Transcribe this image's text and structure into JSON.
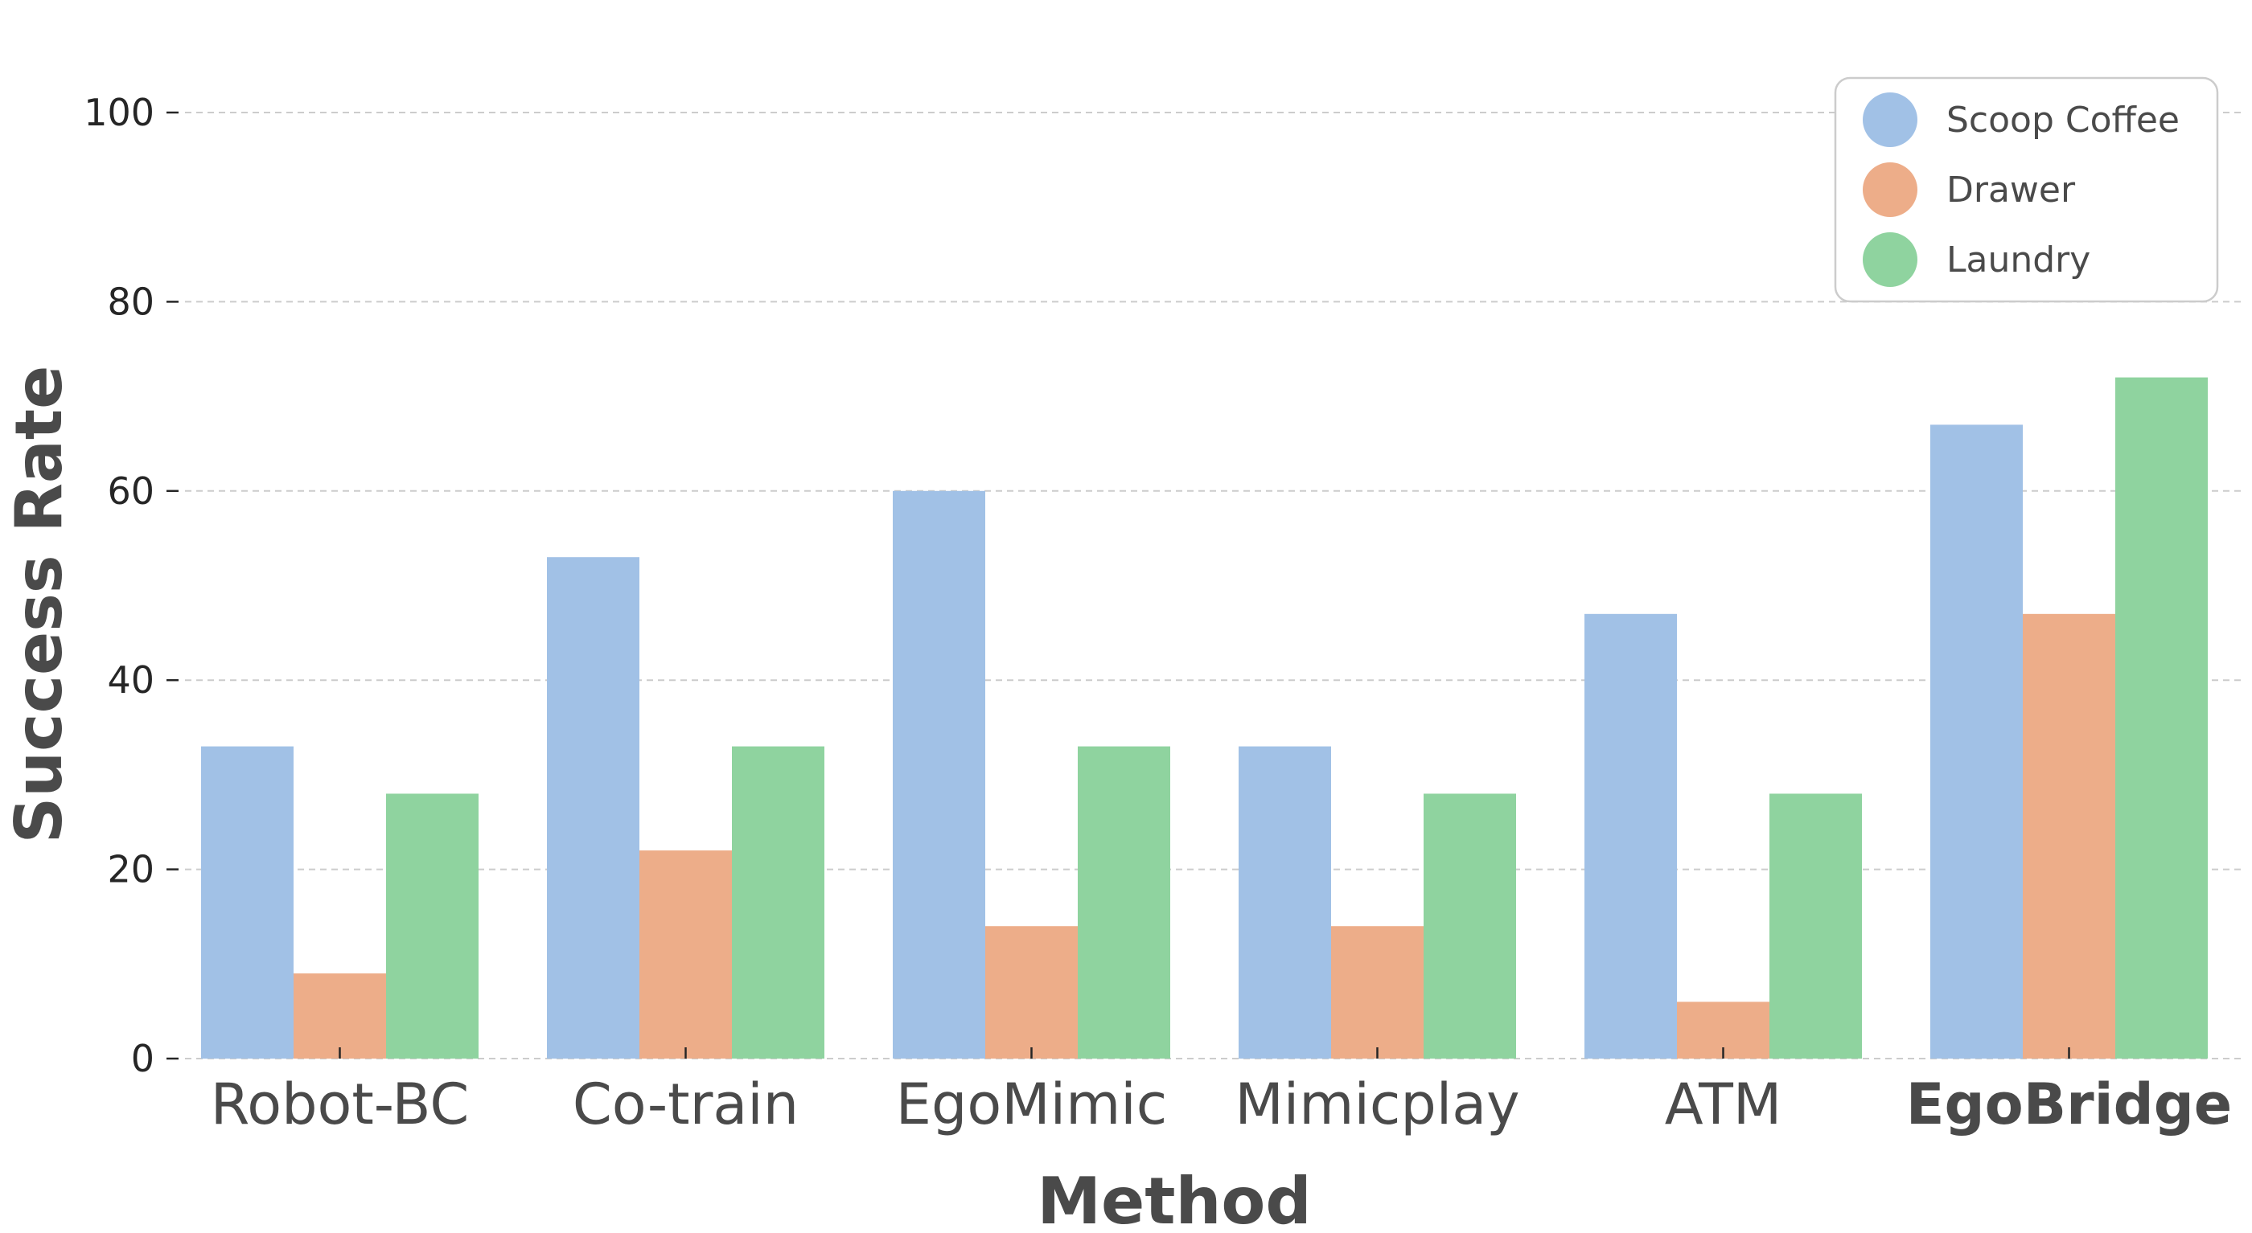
{
  "chart_data": {
    "type": "bar",
    "categories": [
      "Robot-BC",
      "Co-train",
      "EgoMimic",
      "Mimicplay",
      "ATM",
      "EgoBridge"
    ],
    "bold_categories": [
      "EgoBridge"
    ],
    "series": [
      {
        "name": "Scoop Coffee",
        "color": "#a1c1e6",
        "values": [
          33,
          53,
          60,
          33,
          47,
          67
        ]
      },
      {
        "name": "Drawer",
        "color": "#edad89",
        "values": [
          9,
          22,
          14,
          14,
          6,
          47
        ]
      },
      {
        "name": "Laundry",
        "color": "#8fd39f",
        "values": [
          28,
          33,
          33,
          28,
          28,
          72
        ]
      }
    ],
    "xlabel": "Method",
    "ylabel": "Success Rate",
    "ylim": [
      0,
      100
    ],
    "yticks": [
      0,
      20,
      40,
      60,
      80,
      100
    ],
    "grid": true,
    "legend_position": "top-right"
  }
}
